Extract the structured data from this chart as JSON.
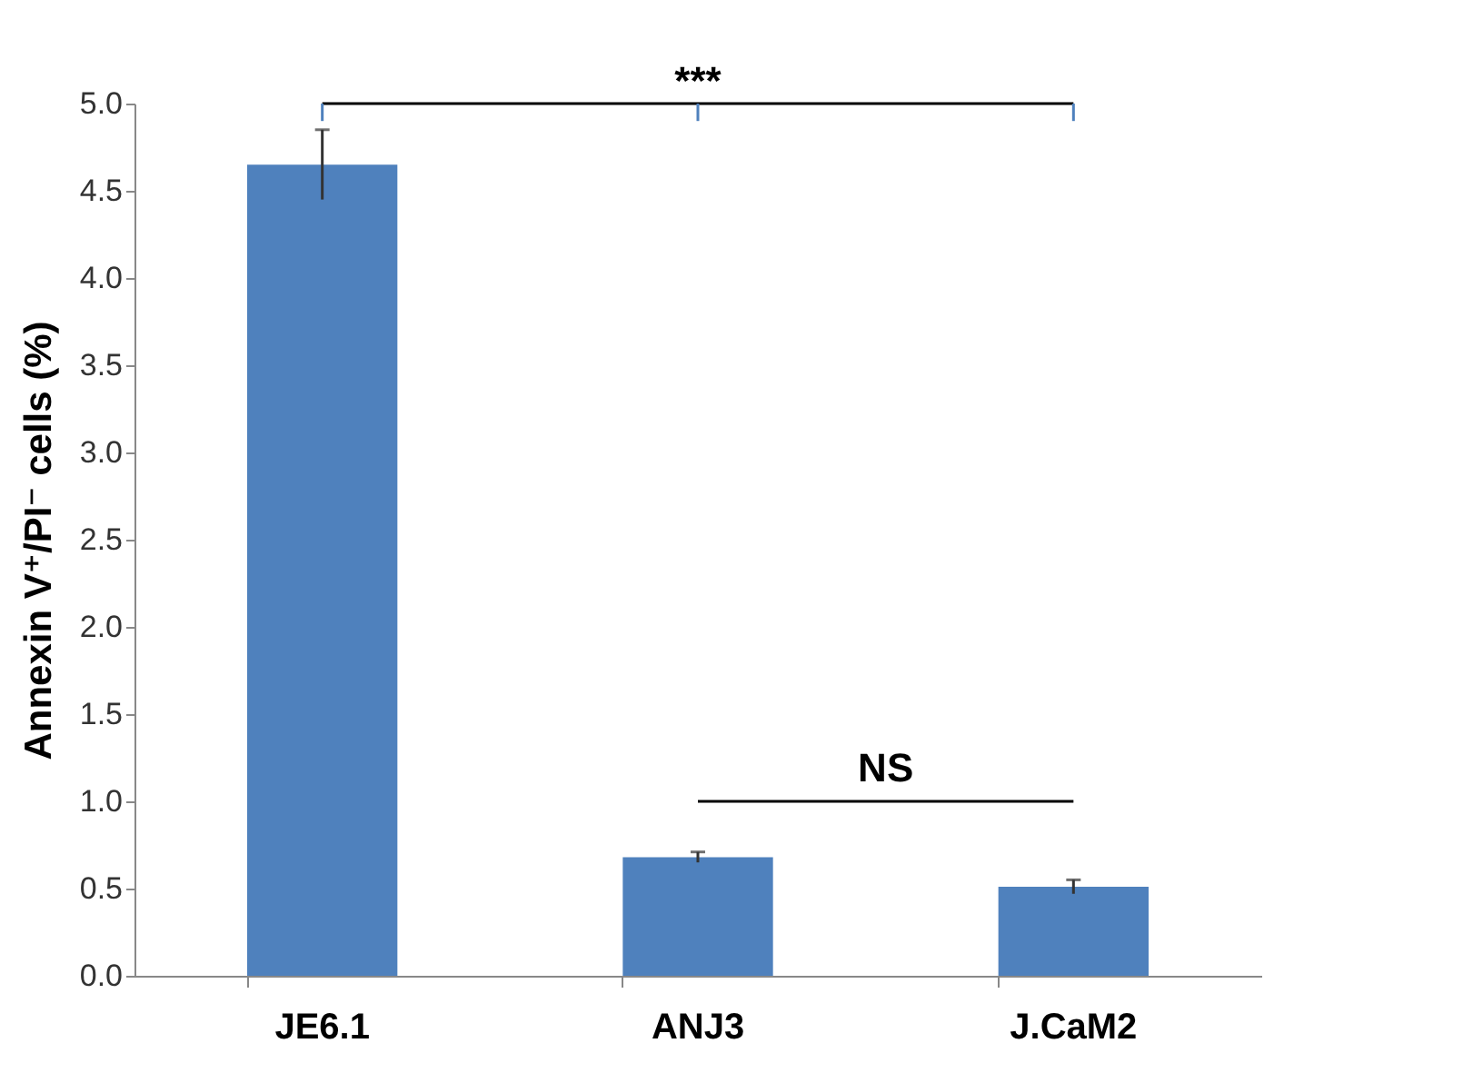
{
  "chart_data": {
    "type": "bar",
    "ylabel": "Annexin V⁺/PI⁻ cells (%)",
    "categories": [
      "JE6.1",
      "ANJ3",
      "J.CaM2"
    ],
    "values": [
      4.65,
      0.68,
      0.51
    ],
    "errors": [
      0.2,
      0.03,
      0.04
    ],
    "color": "#4f81bd",
    "ylim": [
      0,
      5
    ],
    "yticks": [
      {
        "value": 0,
        "label": "0.0"
      },
      {
        "value": 0.5,
        "label": "0.5"
      },
      {
        "value": 1,
        "label": "1.0"
      },
      {
        "value": 1.5,
        "label": "1.5"
      },
      {
        "value": 2,
        "label": "2.0"
      },
      {
        "value": 2.5,
        "label": "2.5"
      },
      {
        "value": 3,
        "label": "3.0"
      },
      {
        "value": 3.5,
        "label": "3.5"
      },
      {
        "value": 4,
        "label": "4.0"
      },
      {
        "value": 4.5,
        "label": "4.5"
      },
      {
        "value": 5,
        "label": "5.0"
      }
    ],
    "grid": false,
    "annotations": [
      "***",
      "NS"
    ]
  }
}
